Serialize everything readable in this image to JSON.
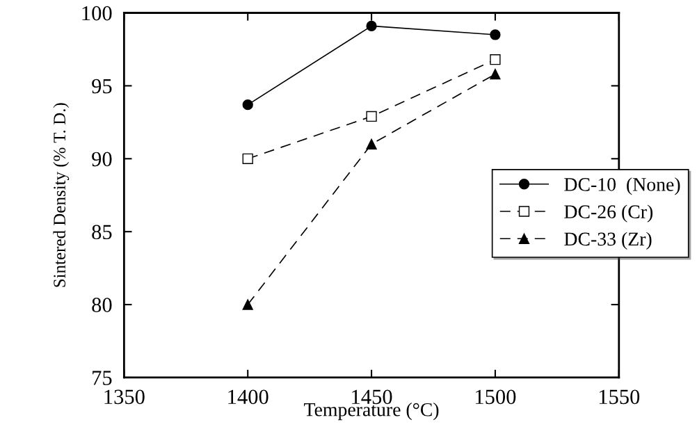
{
  "chart_data": {
    "type": "line",
    "xlabel": "Temperature (°C)",
    "ylabel": "Sintered Density (% T. D.)",
    "x": [
      1400,
      1450,
      1500
    ],
    "series": [
      {
        "name": "DC-10  (None)",
        "color": "#000000",
        "values": [
          93.7,
          99.1,
          98.5
        ],
        "marker": "circle",
        "line_style": "solid"
      },
      {
        "name": "DC-26 (Cr)",
        "color": "#000000",
        "values": [
          90.0,
          92.9,
          96.8
        ],
        "marker": "square",
        "line_style": "dashed"
      },
      {
        "name": "DC-33 (Zr)",
        "color": "#000000",
        "values": [
          80.0,
          91.0,
          95.8
        ],
        "marker": "triangle",
        "line_style": "dashed"
      }
    ],
    "xlim": [
      1350,
      1550
    ],
    "xticks": [
      1350,
      1400,
      1450,
      1500,
      1550
    ],
    "ylim": [
      75,
      100
    ],
    "yticks": [
      75,
      80,
      85,
      90,
      95,
      100
    ],
    "grid": false,
    "legend": "right"
  }
}
